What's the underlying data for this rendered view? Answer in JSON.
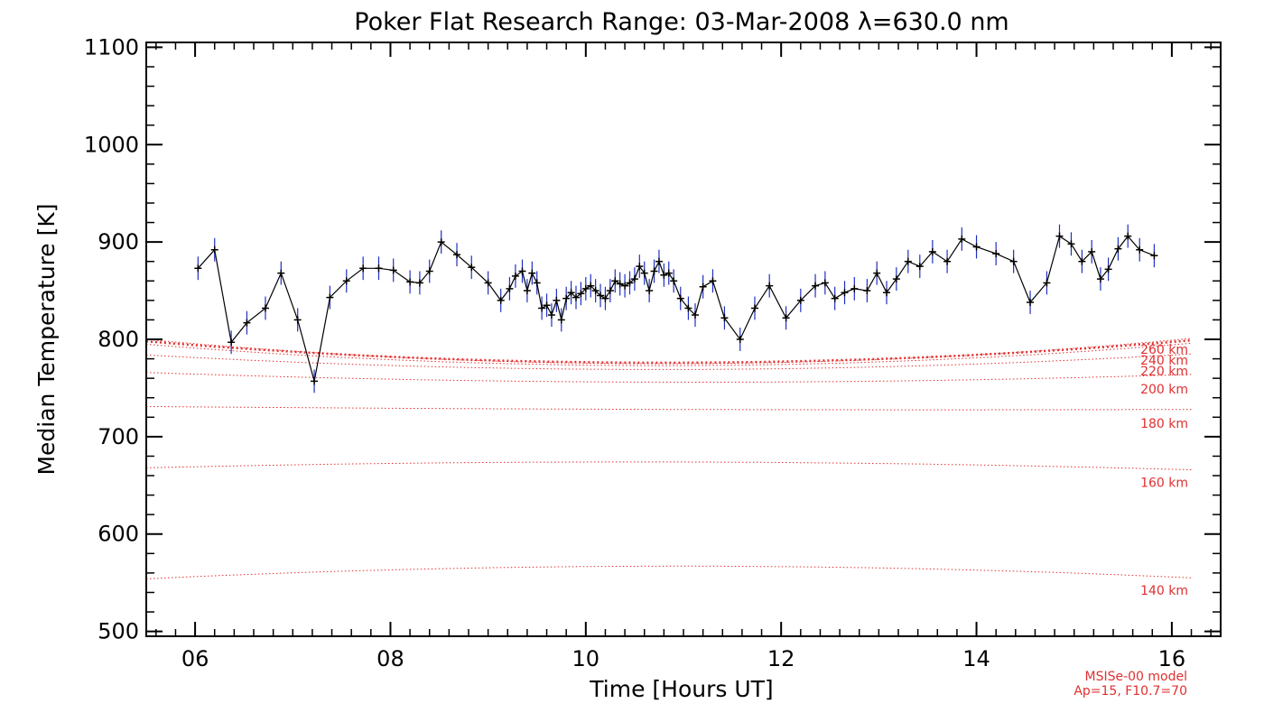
{
  "chart_data": {
    "type": "line",
    "title": "Poker Flat Research Range: 03-Mar-2008 λ=630.0 nm",
    "xlabel": "Time [Hours UT]",
    "ylabel": "Median Temperature [K]",
    "xlim": [
      5.5,
      16.5
    ],
    "ylim": [
      495,
      1105
    ],
    "x_ticks": [
      6,
      8,
      10,
      12,
      14,
      16
    ],
    "x_tick_labels": [
      "06",
      "08",
      "10",
      "12",
      "14",
      "16"
    ],
    "y_ticks": [
      500,
      600,
      700,
      800,
      900,
      1000,
      1100
    ],
    "y_tick_labels": [
      "500",
      "600",
      "700",
      "800",
      "900",
      "1000",
      "1100"
    ],
    "grid": false,
    "colors": {
      "data_line": "#000000",
      "error_bars": "#2030c0",
      "model": "#e03030"
    },
    "series": [
      {
        "x": [
          6.03,
          6.2,
          6.37,
          6.53,
          6.72,
          6.88,
          7.05,
          7.22,
          7.38,
          7.55,
          7.72,
          7.88,
          8.03,
          8.2,
          8.3,
          8.4,
          8.52,
          8.68,
          8.83,
          9.0,
          9.13,
          9.22,
          9.28,
          9.35,
          9.4,
          9.45,
          9.5,
          9.55,
          9.6,
          9.65,
          9.7,
          9.75,
          9.8,
          9.85,
          9.9,
          9.95,
          10.0,
          10.05,
          10.1,
          10.15,
          10.2,
          10.25,
          10.3,
          10.35,
          10.4,
          10.45,
          10.5,
          10.55,
          10.6,
          10.65,
          10.7,
          10.75,
          10.8,
          10.85,
          10.9,
          10.97,
          11.05,
          11.12,
          11.2,
          11.3,
          11.42,
          11.58,
          11.73,
          11.88,
          12.05,
          12.2,
          12.35,
          12.45,
          12.55,
          12.65,
          12.75,
          12.88,
          12.98,
          13.08,
          13.18,
          13.3,
          13.42,
          13.55,
          13.7,
          13.85,
          14.0,
          14.2,
          14.38,
          14.55,
          14.72,
          14.85,
          14.97,
          15.08,
          15.18,
          15.27,
          15.35,
          15.45,
          15.55,
          15.67,
          15.82
        ],
        "y": [
          873,
          892,
          797,
          817,
          832,
          868,
          820,
          757,
          843,
          860,
          873,
          873,
          871,
          859,
          858,
          870,
          900,
          887,
          874,
          858,
          840,
          852,
          865,
          870,
          850,
          868,
          858,
          832,
          835,
          825,
          840,
          820,
          842,
          848,
          843,
          847,
          852,
          855,
          850,
          845,
          842,
          850,
          860,
          857,
          855,
          858,
          862,
          875,
          868,
          850,
          870,
          880,
          866,
          868,
          860,
          842,
          832,
          825,
          854,
          860,
          822,
          800,
          832,
          855,
          822,
          840,
          855,
          858,
          842,
          848,
          852,
          850,
          868,
          848,
          862,
          880,
          875,
          890,
          880,
          903,
          895,
          888,
          880,
          838,
          858,
          906,
          898,
          880,
          890,
          862,
          872,
          893,
          906,
          892,
          886
        ],
        "err": 12
      }
    ],
    "model": {
      "curves": [
        {
          "label": "140 km",
          "y_start": 554,
          "y_mid": 567,
          "y_end": 555
        },
        {
          "label": "160 km",
          "y_start": 668,
          "y_mid": 674,
          "y_end": 666
        },
        {
          "label": "180 km",
          "y_start": 731,
          "y_mid": 728,
          "y_end": 728
        },
        {
          "label": "200 km",
          "y_start": 766,
          "y_mid": 756,
          "y_end": 764
        },
        {
          "label": "220 km",
          "y_start": 784,
          "y_mid": 769,
          "y_end": 785
        },
        {
          "label": "240 km",
          "y_start": 795,
          "y_mid": 773,
          "y_end": 796
        },
        {
          "label": "260 km",
          "y_start": 800,
          "y_mid": 775,
          "y_end": 801
        }
      ],
      "note_line1": "MSISe-00 model",
      "note_line2": "Ap=15, F10.7=70"
    }
  }
}
